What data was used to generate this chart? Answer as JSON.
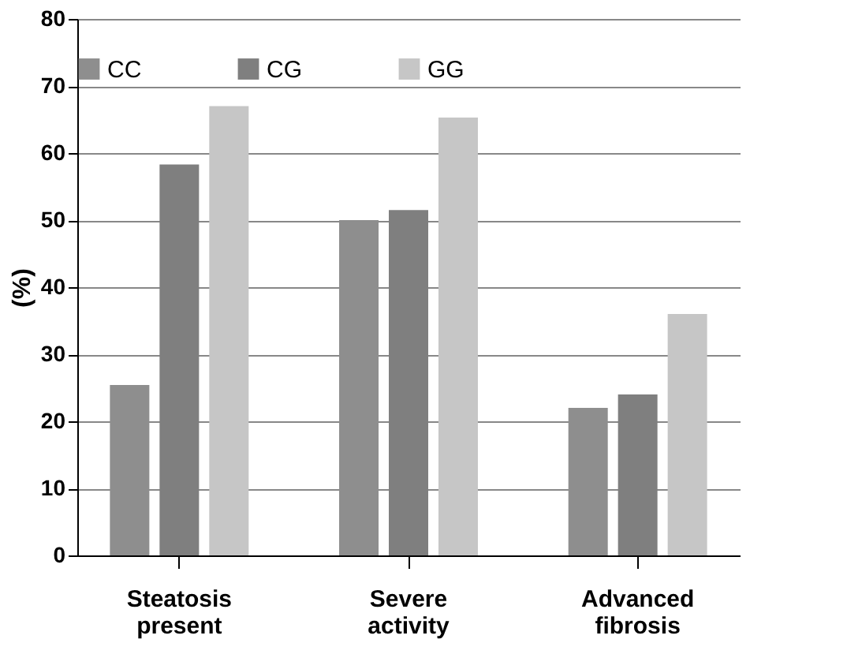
{
  "chart_data": {
    "type": "bar",
    "ylabel": "(%)",
    "categories": [
      "Steatosis present",
      "Severe activity",
      "Advanced fibrosis"
    ],
    "series": [
      {
        "name": "CC",
        "color": "#8e8e8e",
        "values": [
          25.4,
          50,
          22
        ]
      },
      {
        "name": "CG",
        "color": "#7f7f7f",
        "values": [
          58.3,
          51.5,
          24
        ]
      },
      {
        "name": "GG",
        "color": "#c6c6c6",
        "values": [
          67,
          65.3,
          36
        ]
      }
    ],
    "ylim": [
      0,
      80
    ],
    "yticks": [
      0,
      10,
      20,
      30,
      40,
      50,
      60,
      70,
      80
    ],
    "grid": "y",
    "legend": "top"
  }
}
